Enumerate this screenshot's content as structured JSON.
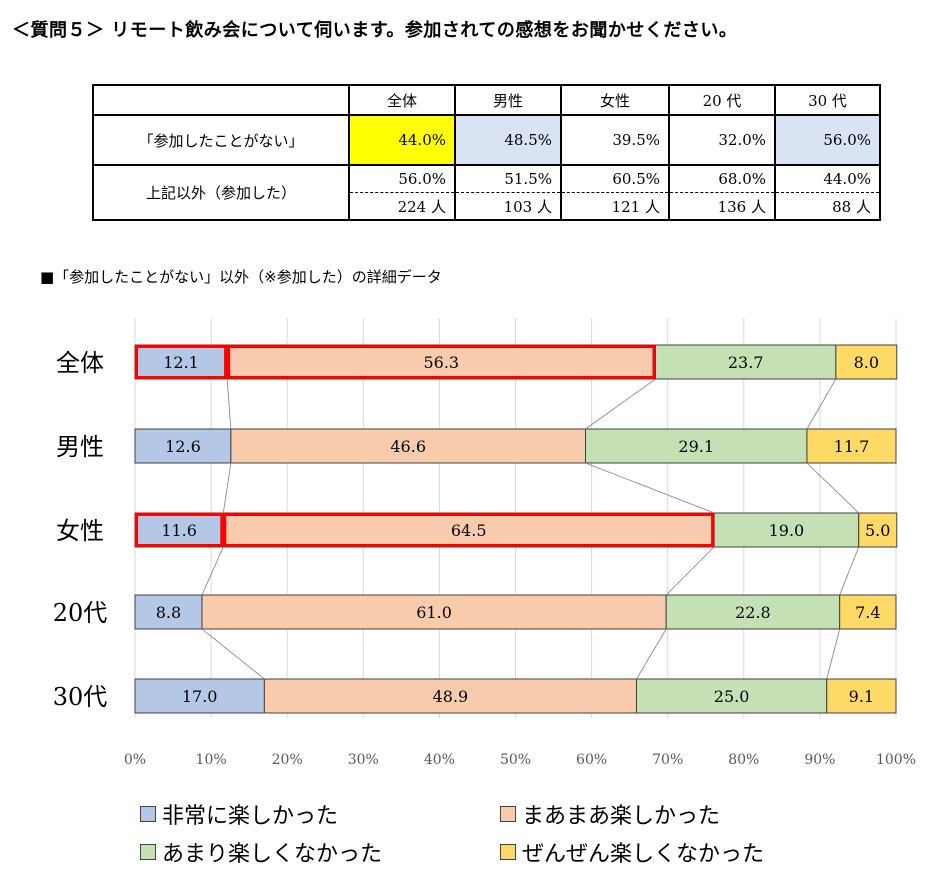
{
  "title": "＜質問５＞ リモート飲み会について伺います。参加されての感想をお聞かせください。",
  "summary_table": {
    "headers": [
      "全体",
      "男性",
      "女性",
      "20 代",
      "30 代"
    ],
    "row_never_label": "「参加したことがない」",
    "row_never_values": [
      "44.0%",
      "48.5%",
      "39.5%",
      "32.0%",
      "56.0%"
    ],
    "row_other_label": "上記以外（参加した）",
    "row_other_pct": [
      "56.0%",
      "51.5%",
      "60.5%",
      "68.0%",
      "44.0%"
    ],
    "row_other_count": [
      "224 人",
      "103 人",
      "121 人",
      "136 人",
      "88 人"
    ],
    "highlight_colors": {
      "yellow": "#ffff00",
      "lightblue": "#dae3f3"
    }
  },
  "subtitle": "■「参加したことがない」以外（※参加した）の詳細データ",
  "chart_data": {
    "type": "bar",
    "orientation": "horizontal",
    "stacked": "percent",
    "categories": [
      "全体",
      "男性",
      "女性",
      "20代",
      "30代"
    ],
    "series": [
      {
        "name": "非常に楽しかった",
        "values": [
          12.1,
          12.6,
          11.6,
          8.8,
          17.0
        ],
        "color": "#b4c7e7"
      },
      {
        "name": "まあまあ楽しかった",
        "values": [
          56.3,
          46.6,
          64.5,
          61.0,
          48.9
        ],
        "color": "#f8cbad"
      },
      {
        "name": "あまり楽しくなかった",
        "values": [
          23.7,
          29.1,
          19.0,
          22.8,
          25.0
        ],
        "color": "#c5e0b4"
      },
      {
        "name": "ぜんぜん楽しくなかった",
        "values": [
          8.0,
          11.7,
          5.0,
          7.4,
          9.1
        ],
        "color": "#ffd966"
      }
    ],
    "x_ticks": [
      "0%",
      "10%",
      "20%",
      "30%",
      "40%",
      "50%",
      "60%",
      "70%",
      "80%",
      "90%",
      "100%"
    ],
    "xlim": [
      0,
      100
    ],
    "highlighted": [
      {
        "category": "全体",
        "series": [
          0,
          1
        ]
      },
      {
        "category": "女性",
        "series": [
          0,
          1
        ]
      }
    ],
    "highlight_color": "#ff0000",
    "grid": true,
    "legend_position": "bottom"
  }
}
